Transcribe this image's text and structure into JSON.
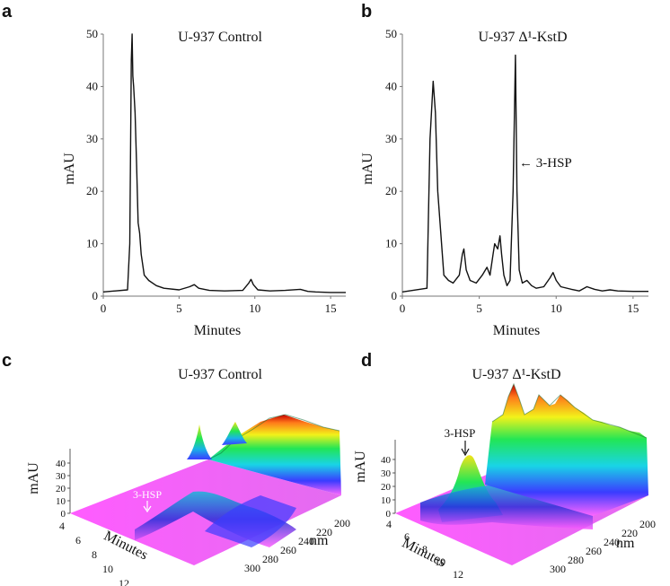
{
  "chart_data": [
    {
      "panel": "a",
      "type": "line",
      "title": "U-937 Control",
      "xlabel": "Minutes",
      "ylabel": "mAU",
      "xlim": [
        0,
        16
      ],
      "ylim": [
        0,
        50
      ],
      "xticks": [
        0,
        5,
        10,
        15
      ],
      "yticks": [
        0,
        10,
        20,
        30,
        40,
        50
      ],
      "x": [
        0,
        1.6,
        1.75,
        1.85,
        1.9,
        1.95,
        2.0,
        2.1,
        2.2,
        2.3,
        2.4,
        2.5,
        2.7,
        3.0,
        3.5,
        4.0,
        5.0,
        5.7,
        6.0,
        6.3,
        7.0,
        8.0,
        9.2,
        9.6,
        9.75,
        9.9,
        10.2,
        11.0,
        12.0,
        13.0,
        13.5,
        14.0,
        15.0,
        16.0
      ],
      "y": [
        0.8,
        1.2,
        10,
        45,
        50,
        42,
        40,
        35,
        25,
        14,
        12,
        8,
        4,
        3,
        2,
        1.5,
        1.2,
        1.8,
        2.2,
        1.5,
        1.1,
        1.0,
        1.1,
        2.5,
        3.2,
        2.2,
        1.2,
        1.0,
        1.1,
        1.3,
        0.9,
        0.8,
        0.7,
        0.7
      ]
    },
    {
      "panel": "b",
      "type": "line",
      "title": "U-937 Δ¹-KstD",
      "xlabel": "Minutes",
      "ylabel": "mAU",
      "xlim": [
        0,
        16
      ],
      "ylim": [
        0,
        50
      ],
      "xticks": [
        0,
        5,
        10,
        15
      ],
      "yticks": [
        0,
        10,
        20,
        30,
        40,
        50
      ],
      "annotation": {
        "text": "← 3-HSP",
        "x": 7.5,
        "y": 26
      },
      "x": [
        0,
        1.6,
        1.8,
        2.0,
        2.15,
        2.3,
        2.5,
        2.7,
        3.0,
        3.3,
        3.7,
        3.9,
        4.0,
        4.15,
        4.4,
        4.8,
        5.2,
        5.5,
        5.7,
        5.9,
        6.0,
        6.2,
        6.35,
        6.45,
        6.6,
        6.8,
        7.0,
        7.2,
        7.35,
        7.45,
        7.6,
        7.8,
        8.1,
        8.4,
        8.7,
        9.2,
        9.6,
        9.8,
        10.0,
        10.3,
        11.0,
        11.5,
        12.0,
        12.5,
        13.0,
        13.5,
        14.0,
        15.0,
        16.0
      ],
      "y": [
        0.8,
        1.5,
        30,
        41,
        35,
        20,
        12,
        4,
        3,
        2.5,
        4,
        8,
        9,
        5,
        3,
        2.5,
        4,
        5.5,
        4,
        8,
        10,
        9,
        11.5,
        8,
        4,
        2,
        3,
        20,
        46,
        20,
        5,
        2.5,
        3,
        2,
        1.5,
        1.8,
        3.5,
        4.5,
        3,
        1.8,
        1.3,
        1.0,
        1.8,
        1.3,
        1.0,
        1.2,
        1.0,
        0.9,
        0.9
      ]
    },
    {
      "panel": "c",
      "type": "surface3d",
      "title": "U-937 Control",
      "zlabel": "mAU",
      "xlabel": "Minutes",
      "ylabel": "nm",
      "zticks": [
        0,
        10,
        20,
        30,
        40
      ],
      "xticks": [
        4,
        6,
        8,
        10,
        12
      ],
      "yticks": [
        200,
        220,
        240,
        260,
        280,
        300
      ],
      "annotation": "3-HSP"
    },
    {
      "panel": "d",
      "type": "surface3d",
      "title": "U-937 Δ¹-KstD",
      "zlabel": "mAU",
      "xlabel": "Minutes",
      "ylabel": "nm",
      "zticks": [
        0,
        10,
        20,
        30,
        40
      ],
      "xticks": [
        4,
        6,
        8,
        10,
        12
      ],
      "yticks": [
        200,
        220,
        240,
        260,
        280,
        300
      ],
      "annotation": "3-HSP"
    }
  ],
  "panels": {
    "a": {
      "letter": "a"
    },
    "b": {
      "letter": "b"
    },
    "c": {
      "letter": "c"
    },
    "d": {
      "letter": "d"
    }
  },
  "colors": {
    "trace": "#111111",
    "surface_low": "#ff55ff",
    "surface_mid": "#2a3cff",
    "surface_high": "#00e5c8",
    "surface_peak": "#c80000"
  }
}
